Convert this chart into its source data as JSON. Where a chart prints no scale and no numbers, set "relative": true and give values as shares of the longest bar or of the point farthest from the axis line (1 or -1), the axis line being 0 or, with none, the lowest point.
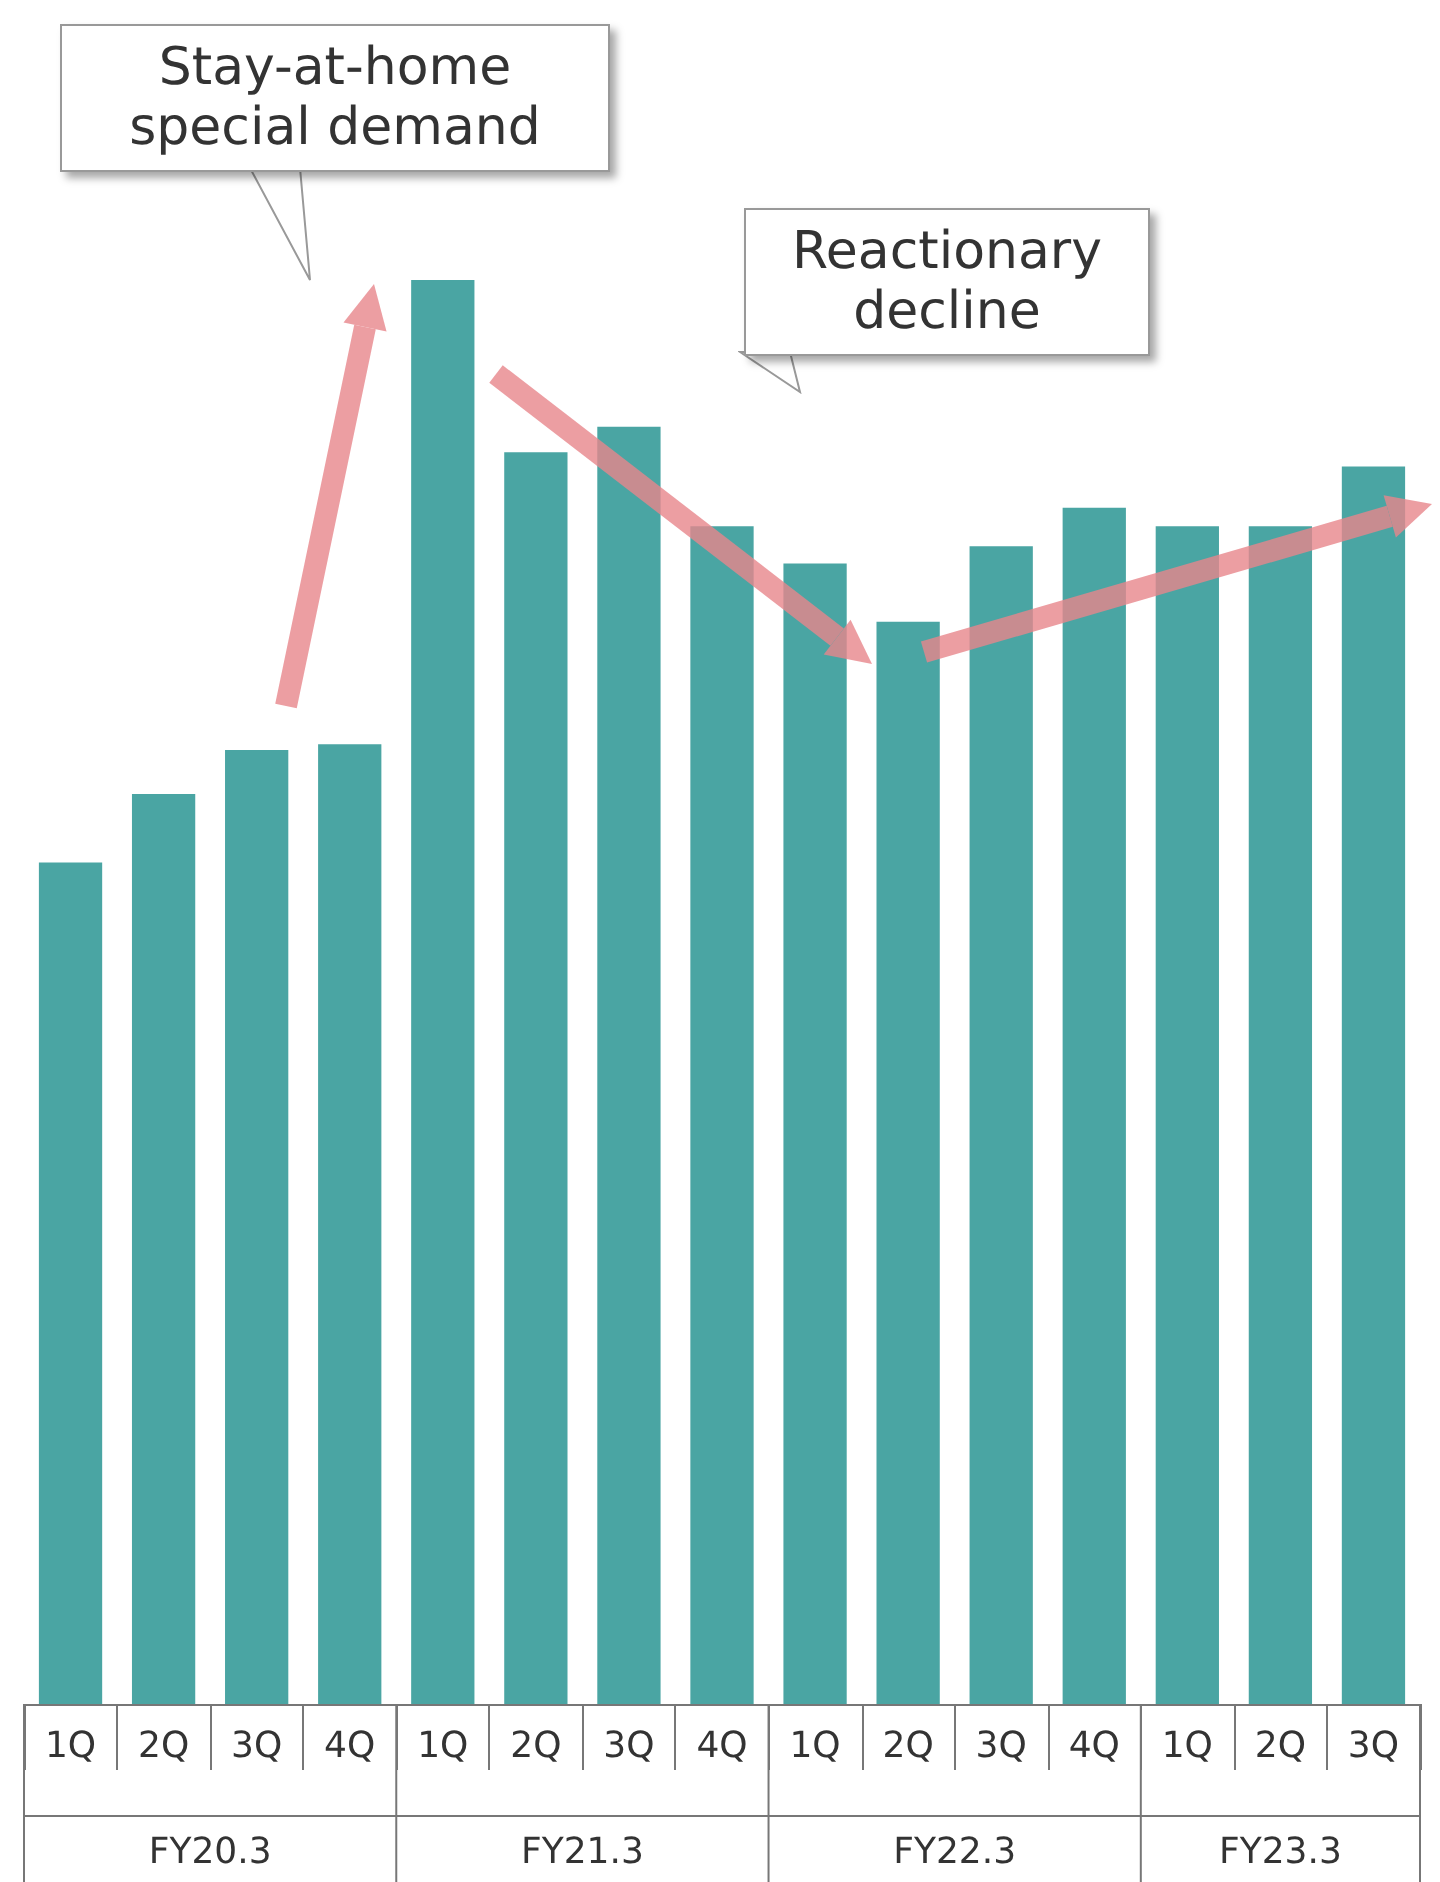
{
  "chart_data": {
    "type": "bar",
    "relative": true,
    "categories": [
      "1Q",
      "2Q",
      "3Q",
      "4Q",
      "1Q",
      "2Q",
      "3Q",
      "4Q",
      "1Q",
      "2Q",
      "3Q",
      "4Q",
      "1Q",
      "2Q",
      "3Q"
    ],
    "values": [
      0.591,
      0.639,
      0.67,
      0.674,
      1,
      0.879,
      0.897,
      0.827,
      0.801,
      0.76,
      0.813,
      0.84,
      0.827,
      0.827,
      0.869
    ],
    "color": "#4aa5a3",
    "annotations": [
      "Stay-at-home special demand",
      "Reactionary decline",
      "FY20.3",
      "FY21.3",
      "FY22.3",
      "FY23.3"
    ]
  }
}
